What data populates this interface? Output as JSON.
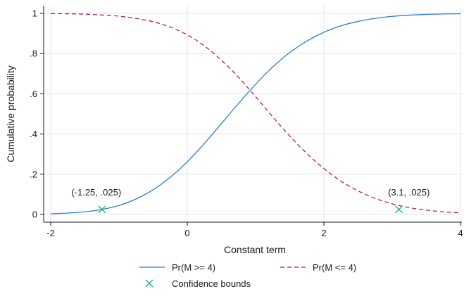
{
  "chart_data": {
    "type": "line",
    "title": "",
    "xlabel": "Constant term",
    "ylabel": "Cumulative probability",
    "xlim": [
      -2,
      4
    ],
    "ylim": [
      0,
      1
    ],
    "xticks": [
      -2,
      0,
      2,
      4
    ],
    "xtick_labels": [
      "-2",
      "0",
      "2",
      "4"
    ],
    "yticks": [
      0,
      0.2,
      0.4,
      0.6,
      0.8,
      1
    ],
    "ytick_labels": [
      "0",
      ".2",
      ".4",
      ".6",
      ".8",
      "1"
    ],
    "grid": true,
    "legend_position": "bottom",
    "series": [
      {
        "name": "Pr(M >= 4)",
        "style": "solid",
        "color": "#2b7fd6",
        "x": [
          -2,
          -1.75,
          -1.5,
          -1.25,
          -1,
          -0.75,
          -0.5,
          -0.25,
          0,
          0.25,
          0.5,
          0.75,
          1,
          1.25,
          1.5,
          1.75,
          2,
          2.25,
          2.5,
          2.75,
          3,
          3.25,
          3.5,
          3.75,
          4
        ],
        "values": [
          0.003,
          0.007,
          0.013,
          0.025,
          0.045,
          0.077,
          0.123,
          0.185,
          0.262,
          0.353,
          0.452,
          0.552,
          0.647,
          0.733,
          0.805,
          0.862,
          0.906,
          0.938,
          0.96,
          0.975,
          0.985,
          0.991,
          0.995,
          0.997,
          0.998
        ]
      },
      {
        "name": "Pr(M <= 4)",
        "style": "dashed",
        "color": "#c2185b",
        "x": [
          -2,
          -1.75,
          -1.5,
          -1.25,
          -1,
          -0.75,
          -0.5,
          -0.25,
          0,
          0.25,
          0.5,
          0.75,
          1,
          1.25,
          1.5,
          1.75,
          2,
          2.25,
          2.5,
          2.75,
          3,
          3.25,
          3.5,
          3.75,
          4
        ],
        "values": [
          0.999,
          0.998,
          0.996,
          0.992,
          0.986,
          0.975,
          0.958,
          0.932,
          0.893,
          0.838,
          0.767,
          0.682,
          0.586,
          0.486,
          0.39,
          0.303,
          0.228,
          0.166,
          0.117,
          0.08,
          0.053,
          0.034,
          0.022,
          0.013,
          0.008
        ]
      },
      {
        "name": "Confidence bounds",
        "style": "marker",
        "marker": "x",
        "color": "#22b38a",
        "x": [
          -1.25,
          3.1
        ],
        "values": [
          0.025,
          0.025
        ]
      }
    ],
    "annotations": [
      {
        "text": "(-1.25, .025)",
        "x": -1.25,
        "y": 0.025
      },
      {
        "text": "(3.1, .025)",
        "x": 3.1,
        "y": 0.025
      }
    ]
  }
}
